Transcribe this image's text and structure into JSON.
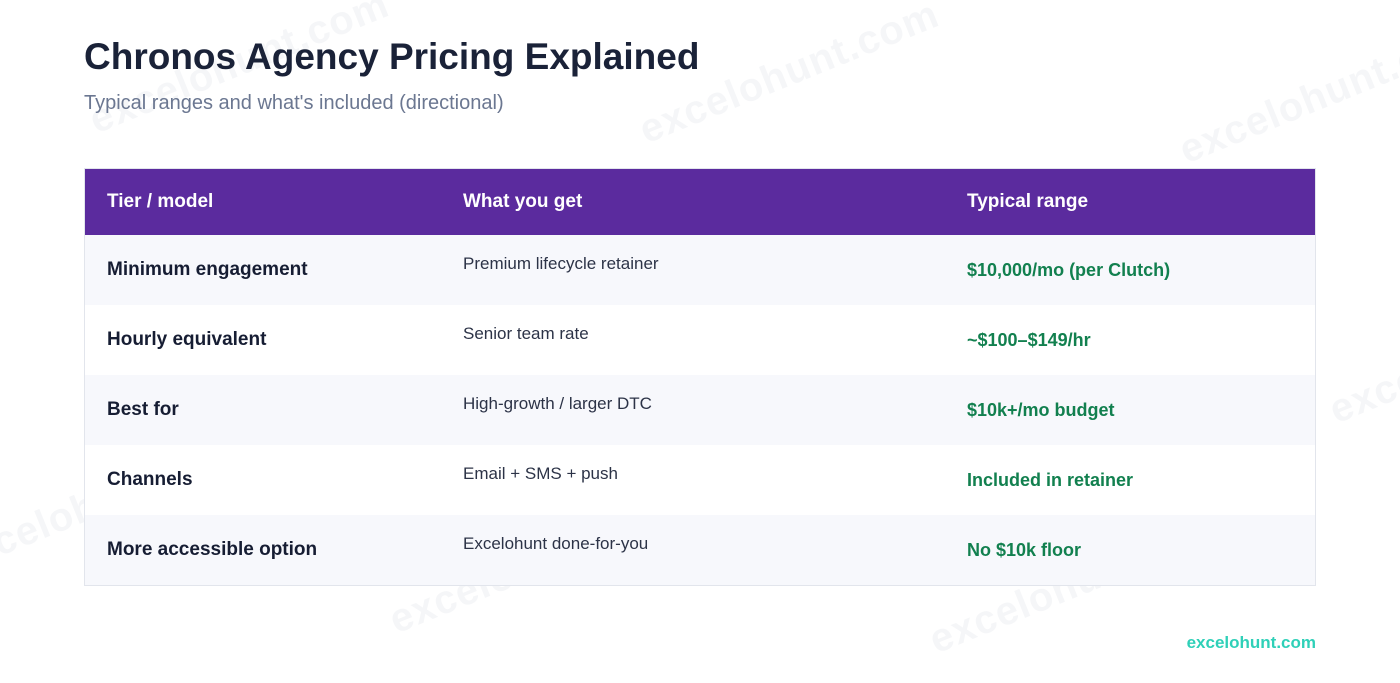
{
  "header": {
    "title": "Chronos Agency Pricing Explained",
    "subtitle": "Typical ranges and what's included (directional)"
  },
  "table": {
    "columns": [
      "Tier / model",
      "What you get",
      "Typical range"
    ],
    "rows": [
      {
        "tier": "Minimum engagement",
        "get": "Premium lifecycle retainer",
        "range": "$10,000/mo (per Clutch)"
      },
      {
        "tier": "Hourly equivalent",
        "get": "Senior team rate",
        "range": "~$100–$149/hr"
      },
      {
        "tier": "Best for",
        "get": "High-growth / larger DTC",
        "range": "$10k+/mo budget"
      },
      {
        "tier": "Channels",
        "get": "Email + SMS + push",
        "range": "Included in retainer"
      },
      {
        "tier": "More accessible option",
        "get": "Excelohunt done-for-you",
        "range": "No $10k floor"
      }
    ]
  },
  "watermark": {
    "text": "excelohunt.com"
  },
  "footer": {
    "brand": "excelohunt.com"
  },
  "colors": {
    "header_bg": "#5b2b9e",
    "range_text": "#12804f",
    "brand_accent": "#2fd0b8",
    "title_text": "#1a2238",
    "subtitle_text": "#6b7791"
  }
}
